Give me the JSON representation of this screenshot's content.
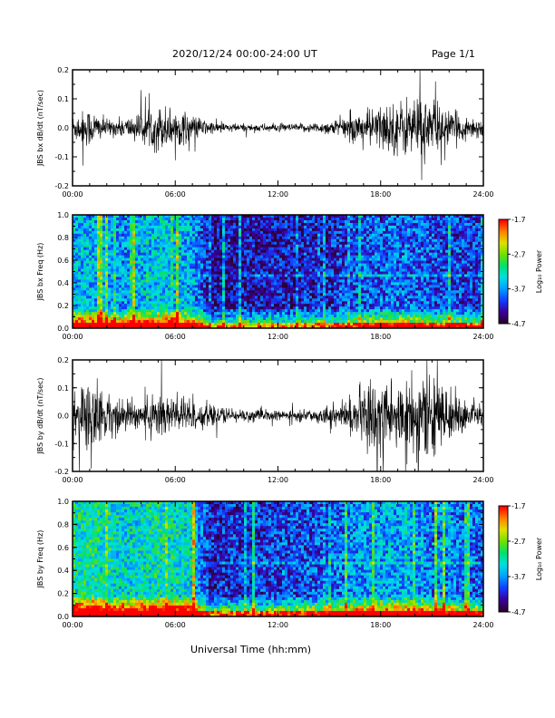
{
  "header": {
    "title": "2020/12/24  00:00-24:00 UT",
    "page": "Page 1/1"
  },
  "xaxis_title": "Universal Time (hh:mm)",
  "colorbar_label": "Log₁₀ Power",
  "colorbar_ticks": [
    "-1.7",
    "-2.7",
    "-3.7",
    "-4.7"
  ],
  "colors": {
    "trace": "#000000",
    "colormap": [
      "#2a0030",
      "#3a00a0",
      "#1040ff",
      "#00a0ff",
      "#00e0e0",
      "#00e070",
      "#70e000",
      "#e0e000",
      "#ff8000",
      "#ff0000"
    ]
  },
  "chart_data": [
    {
      "type": "line",
      "ylabel": "JBS bx dB/dt (nT/sec)",
      "ylim": [
        -0.2,
        0.2
      ],
      "yticks": [
        "0.2",
        "0.1",
        "0.0",
        "-0.1",
        "-0.2"
      ],
      "xticks": [
        "00:00",
        "06:00",
        "12:00",
        "18:00",
        "24:00"
      ],
      "xlim": [
        0,
        24
      ],
      "series": [
        {
          "x": [
            0,
            1,
            2,
            3,
            4,
            5,
            6,
            7,
            8,
            9,
            10,
            11,
            12,
            13,
            14,
            15,
            16,
            17,
            18,
            19,
            20,
            21,
            22,
            23,
            24
          ],
          "amplitude": [
            0.04,
            0.06,
            0.025,
            0.03,
            0.045,
            0.07,
            0.06,
            0.04,
            0.02,
            0.015,
            0.012,
            0.012,
            0.012,
            0.012,
            0.015,
            0.02,
            0.035,
            0.05,
            0.07,
            0.08,
            0.1,
            0.09,
            0.05,
            0.035,
            0.03
          ],
          "peaks": [
            [
              0.6,
              -0.13
            ],
            [
              4.0,
              0.13
            ],
            [
              20.3,
              0.21
            ],
            [
              20.4,
              -0.18
            ],
            [
              21.2,
              0.16
            ]
          ]
        }
      ]
    },
    {
      "type": "heatmap",
      "ylabel": "JBS bx Freq (Hz)",
      "ylim": [
        0.0,
        1.0
      ],
      "yticks": [
        "1.0",
        "0.8",
        "0.6",
        "0.4",
        "0.2",
        "0.0"
      ],
      "xticks": [
        "00:00",
        "06:00",
        "12:00",
        "18:00",
        "24:00"
      ],
      "xlim": [
        0,
        24
      ],
      "zlim": [
        -4.7,
        -1.7
      ],
      "activity": [
        0.55,
        0.55,
        0.5,
        0.45,
        0.55,
        0.6,
        0.55,
        0.5,
        0.08,
        0.1,
        0.1,
        0.1,
        0.1,
        0.1,
        0.12,
        0.15,
        0.22,
        0.28,
        0.34,
        0.34,
        0.34,
        0.28,
        0.25,
        0.22,
        0.2
      ]
    },
    {
      "type": "line",
      "ylabel": "JBS by dB/dt (nT/sec)",
      "ylim": [
        -0.2,
        0.2
      ],
      "yticks": [
        "0.2",
        "0.1",
        "0.0",
        "-0.1",
        "-0.2"
      ],
      "xticks": [
        "00:00",
        "06:00",
        "12:00",
        "18:00",
        "24:00"
      ],
      "xlim": [
        0,
        24
      ],
      "series": [
        {
          "x": [
            0,
            1,
            2,
            3,
            4,
            5,
            6,
            7,
            8,
            9,
            10,
            11,
            12,
            13,
            14,
            15,
            16,
            17,
            18,
            19,
            20,
            21,
            22,
            23,
            24
          ],
          "amplitude": [
            0.07,
            0.12,
            0.07,
            0.05,
            0.05,
            0.08,
            0.07,
            0.06,
            0.03,
            0.025,
            0.02,
            0.02,
            0.015,
            0.015,
            0.02,
            0.03,
            0.045,
            0.09,
            0.13,
            0.12,
            0.12,
            0.12,
            0.08,
            0.05,
            0.04
          ],
          "peaks": [
            [
              0.4,
              -0.2
            ],
            [
              1.1,
              -0.19
            ],
            [
              5.2,
              0.2
            ],
            [
              17.8,
              -0.2
            ],
            [
              20.2,
              -0.2
            ],
            [
              20.7,
              0.2
            ],
            [
              21.3,
              0.2
            ]
          ]
        }
      ]
    },
    {
      "type": "heatmap",
      "ylabel": "JBS by Freq (Hz)",
      "ylim": [
        0.0,
        1.0
      ],
      "yticks": [
        "1.0",
        "0.8",
        "0.6",
        "0.4",
        "0.2",
        "0.0"
      ],
      "xticks": [
        "00:00",
        "06:00",
        "12:00",
        "18:00",
        "24:00"
      ],
      "xlim": [
        0,
        24
      ],
      "zlim": [
        -4.7,
        -1.7
      ],
      "activity": [
        0.7,
        0.8,
        0.7,
        0.65,
        0.7,
        0.75,
        0.7,
        0.65,
        0.15,
        0.18,
        0.2,
        0.2,
        0.22,
        0.25,
        0.28,
        0.32,
        0.4,
        0.48,
        0.5,
        0.5,
        0.45,
        0.4,
        0.4,
        0.35,
        0.3
      ]
    }
  ]
}
